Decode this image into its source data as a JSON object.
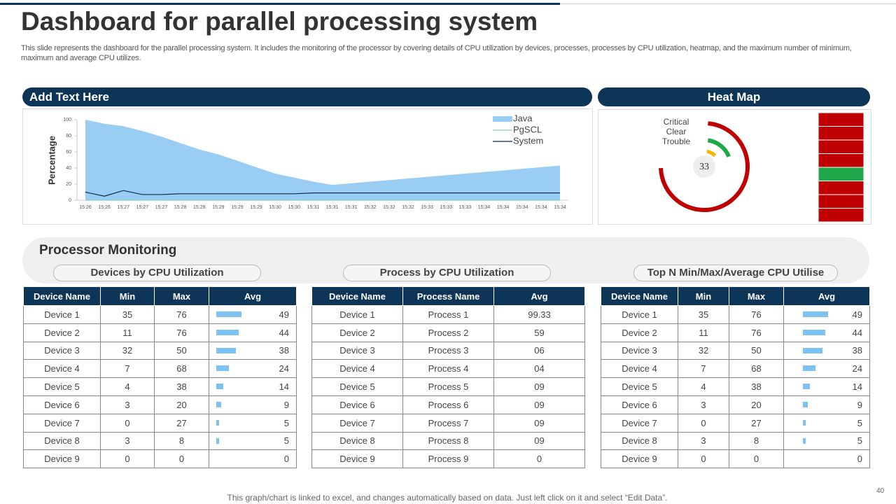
{
  "header": {
    "title": "Dashboard for parallel processing system",
    "description": "This slide represents the dashboard for the parallel processing system. It includes the monitoring of the processor by covering details of CPU utilization by devices, processes, processes by CPU utilization, heatmap, and the maximum number of minimum, maximum and average CPU utilizes."
  },
  "chart_panel": {
    "title": "Add Text Here",
    "chart": {
      "type": "area",
      "y_label": "Percentage",
      "categories": [
        "15:26",
        "15:26",
        "15:27",
        "15:27",
        "15:27",
        "15:28",
        "15:28",
        "15:29",
        "15:29",
        "15:29",
        "15:30",
        "15:30",
        "15:31",
        "15:31",
        "15:31",
        "15:32",
        "15:32",
        "15:32",
        "15:33",
        "15:33",
        "15:33",
        "15:34",
        "15:34",
        "15:34",
        "15:34",
        "15:34"
      ],
      "series": [
        {
          "name": "Java",
          "color": "#99cdf3",
          "kind": "area",
          "values": [
            100,
            95,
            92,
            86,
            79,
            71,
            63,
            57,
            49,
            41,
            33,
            28,
            23,
            19,
            21,
            23,
            25,
            27,
            29,
            31,
            33,
            35,
            37,
            39,
            41,
            43
          ]
        },
        {
          "name": "PgSCL",
          "color": "#7fd3c8",
          "kind": "line",
          "values": [
            0,
            0,
            0,
            0,
            0,
            0,
            0,
            0,
            0,
            0,
            0,
            0,
            0,
            0,
            0,
            0,
            0,
            0,
            0,
            0,
            0,
            0,
            0,
            0,
            0,
            0
          ]
        },
        {
          "name": "System",
          "color": "#0d2b4e",
          "kind": "line",
          "values": [
            10,
            5,
            12,
            7,
            7,
            8,
            8,
            8,
            8,
            8,
            8,
            8,
            9,
            9,
            9,
            9,
            9,
            9,
            9,
            9,
            9,
            9,
            9,
            9,
            9,
            9
          ]
        }
      ],
      "ylim": [
        0,
        100
      ],
      "yticks": [
        0,
        20,
        40,
        60,
        80,
        100
      ]
    }
  },
  "heatmap_panel": {
    "title": "Heat Map",
    "labels": [
      "Critical",
      "Clear",
      "Trouble"
    ],
    "value": 33,
    "cells": [
      "#c00000",
      "#c00000",
      "#c00000",
      "#c00000",
      "#1ea84a",
      "#c00000",
      "#c00000",
      "#c00000"
    ]
  },
  "monitoring": {
    "title": "Processor Monitoring",
    "tables": [
      {
        "title": "Devices by CPU Utilization",
        "avg_bars": true,
        "columns": [
          "Device Name",
          "Min",
          "Max",
          "Avg"
        ],
        "rows": [
          [
            "Device 1",
            35,
            76,
            49
          ],
          [
            "Device 2",
            11,
            76,
            44
          ],
          [
            "Device 3",
            32,
            50,
            38
          ],
          [
            "Device 4",
            7,
            68,
            24
          ],
          [
            "Device 5",
            4,
            38,
            14
          ],
          [
            "Device 6",
            3,
            20,
            9
          ],
          [
            "Device 7",
            0,
            27,
            5
          ],
          [
            "Device 8",
            3,
            8,
            5
          ],
          [
            "Device 9",
            0,
            0,
            0
          ]
        ]
      },
      {
        "title": "Process by CPU Utilization",
        "avg_bars": false,
        "columns": [
          "Device Name",
          "Process Name",
          "Avg"
        ],
        "rows": [
          [
            "Device 1",
            "Process 1",
            "99.33"
          ],
          [
            "Device 2",
            "Process 2",
            "59"
          ],
          [
            "Device 3",
            "Process 3",
            "06"
          ],
          [
            "Device 4",
            "Process 4",
            "04"
          ],
          [
            "Device 5",
            "Process 5",
            "09"
          ],
          [
            "Device 6",
            "Process 6",
            "09"
          ],
          [
            "Device 7",
            "Process 7",
            "09"
          ],
          [
            "Device 8",
            "Process 8",
            "09"
          ],
          [
            "Device 9",
            "Process 9",
            "0"
          ]
        ]
      },
      {
        "title": "Top N Min/Max/Average CPU Utilise",
        "avg_bars": true,
        "columns": [
          "Device Name",
          "Min",
          "Max",
          "Avg"
        ],
        "rows": [
          [
            "Device 1",
            35,
            76,
            49
          ],
          [
            "Device 2",
            11,
            76,
            44
          ],
          [
            "Device 3",
            32,
            50,
            38
          ],
          [
            "Device 4",
            7,
            68,
            24
          ],
          [
            "Device 5",
            4,
            38,
            14
          ],
          [
            "Device 6",
            3,
            20,
            9
          ],
          [
            "Device 7",
            0,
            27,
            5
          ],
          [
            "Device 8",
            3,
            8,
            5
          ],
          [
            "Device 9",
            0,
            0,
            0
          ]
        ]
      }
    ]
  },
  "footer": {
    "note": "This graph/chart is linked to excel, and changes automatically based on data. Just left click on it and select “Edit Data”.",
    "page": 40
  }
}
